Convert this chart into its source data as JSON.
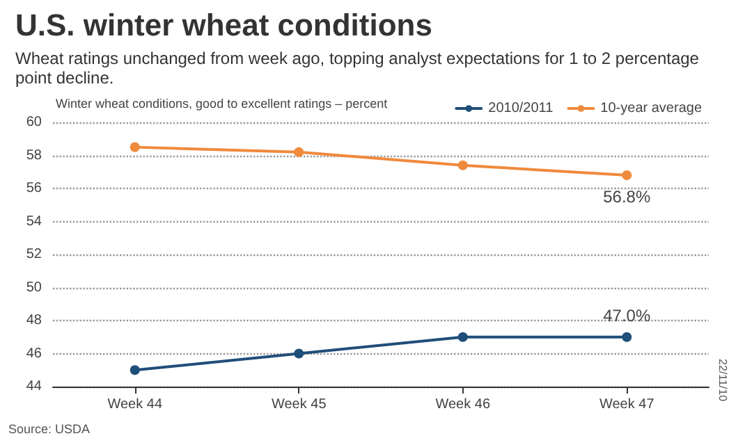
{
  "chart_data": {
    "type": "line",
    "title": "U.S. winter wheat conditions",
    "subtitle": "Wheat ratings unchanged from week ago, topping analyst expectations for 1 to 2 percentage point decline.",
    "ylabel": "Winter wheat conditions, good to excellent ratings – percent",
    "categories": [
      "Week 44",
      "Week 45",
      "Week 46",
      "Week 47"
    ],
    "series": [
      {
        "name": "2010/2011",
        "color": "#1f4e79",
        "values": [
          45,
          46,
          47,
          47
        ],
        "value_labels": [
          null,
          null,
          null,
          "47.0%"
        ]
      },
      {
        "name": "10-year average",
        "color": "#f08a3c",
        "values": [
          58.5,
          58.2,
          57.4,
          56.8
        ],
        "value_labels": [
          null,
          null,
          null,
          "56.8%"
        ]
      }
    ],
    "ylim": [
      44,
      60
    ],
    "yticks": [
      44,
      46,
      48,
      50,
      52,
      54,
      56,
      58,
      60
    ],
    "grid": "y",
    "legend": "top right",
    "marker": "circle",
    "line_style": "solid",
    "annotations": [
      "Source: USDA",
      "22/11/10"
    ]
  }
}
